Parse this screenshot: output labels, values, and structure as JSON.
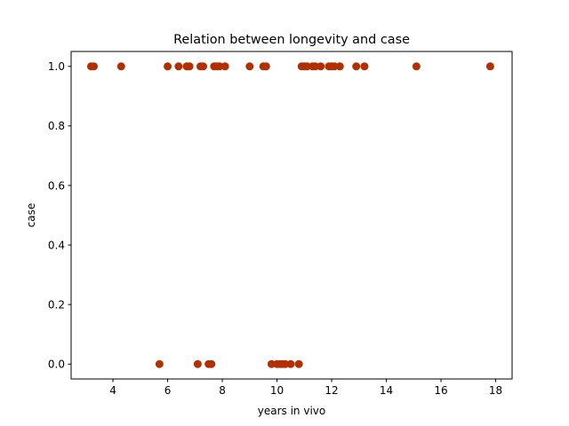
{
  "chart_data": {
    "type": "scatter",
    "title": "Relation between longevity and case",
    "xlabel": "years in vivo",
    "ylabel": "case",
    "xlim": [
      2.47,
      18.6
    ],
    "ylim": [
      -0.05,
      1.05
    ],
    "xticks": [
      4,
      6,
      8,
      10,
      12,
      14,
      16,
      18
    ],
    "xtick_labels": [
      "4",
      "6",
      "8",
      "10",
      "12",
      "14",
      "16",
      "18"
    ],
    "yticks": [
      0.0,
      0.2,
      0.4,
      0.6,
      0.8,
      1.0
    ],
    "ytick_labels": [
      "0.0",
      "0.2",
      "0.4",
      "0.6",
      "0.8",
      "1.0"
    ],
    "grid": false,
    "marker_color": "#b22f00",
    "points": [
      {
        "x": 3.2,
        "y": 1
      },
      {
        "x": 3.3,
        "y": 1
      },
      {
        "x": 4.3,
        "y": 1
      },
      {
        "x": 6.0,
        "y": 1
      },
      {
        "x": 6.4,
        "y": 1
      },
      {
        "x": 6.7,
        "y": 1
      },
      {
        "x": 6.8,
        "y": 1
      },
      {
        "x": 7.2,
        "y": 1
      },
      {
        "x": 7.3,
        "y": 1
      },
      {
        "x": 7.7,
        "y": 1
      },
      {
        "x": 7.8,
        "y": 1
      },
      {
        "x": 7.9,
        "y": 1
      },
      {
        "x": 8.1,
        "y": 1
      },
      {
        "x": 9.0,
        "y": 1
      },
      {
        "x": 9.5,
        "y": 1
      },
      {
        "x": 9.6,
        "y": 1
      },
      {
        "x": 10.9,
        "y": 1
      },
      {
        "x": 11.0,
        "y": 1
      },
      {
        "x": 11.1,
        "y": 1
      },
      {
        "x": 11.3,
        "y": 1
      },
      {
        "x": 11.4,
        "y": 1
      },
      {
        "x": 11.6,
        "y": 1
      },
      {
        "x": 11.9,
        "y": 1
      },
      {
        "x": 12.0,
        "y": 1
      },
      {
        "x": 12.1,
        "y": 1
      },
      {
        "x": 12.3,
        "y": 1
      },
      {
        "x": 12.9,
        "y": 1
      },
      {
        "x": 13.2,
        "y": 1
      },
      {
        "x": 15.1,
        "y": 1
      },
      {
        "x": 17.8,
        "y": 1
      },
      {
        "x": 5.7,
        "y": 0
      },
      {
        "x": 7.1,
        "y": 0
      },
      {
        "x": 7.5,
        "y": 0
      },
      {
        "x": 7.6,
        "y": 0
      },
      {
        "x": 9.8,
        "y": 0
      },
      {
        "x": 10.0,
        "y": 0
      },
      {
        "x": 10.1,
        "y": 0
      },
      {
        "x": 10.2,
        "y": 0
      },
      {
        "x": 10.3,
        "y": 0
      },
      {
        "x": 10.5,
        "y": 0
      },
      {
        "x": 10.8,
        "y": 0
      }
    ]
  }
}
